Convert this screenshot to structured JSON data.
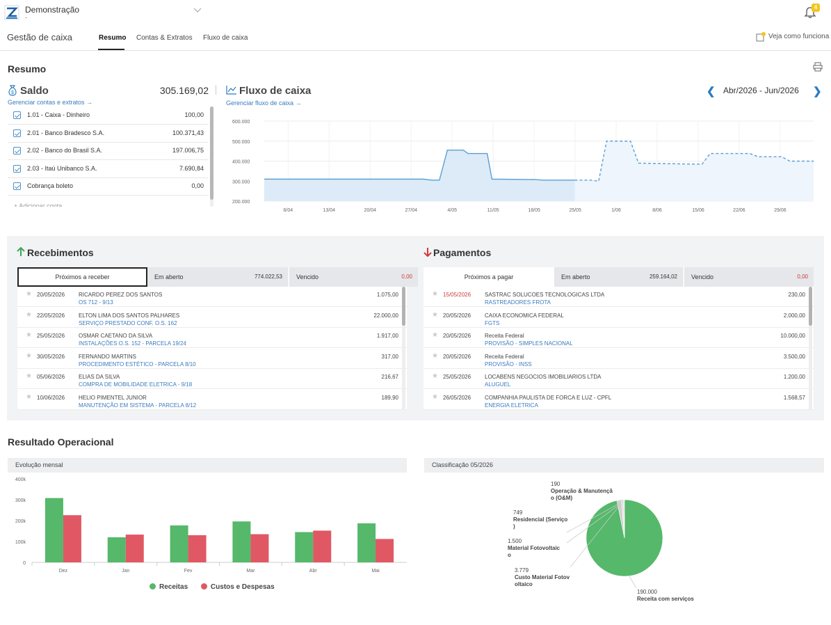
{
  "header": {
    "company": "Demonstração",
    "company_sub": "-",
    "notifications": "4"
  },
  "nav": {
    "title": "Gestão de caixa",
    "tabs": [
      "Resumo",
      "Contas & Extratos",
      "Fluxo de caixa"
    ],
    "help": "Veja como funciona"
  },
  "resumo": {
    "title": "Resumo",
    "saldo": {
      "title": "Saldo",
      "total": "305.169,02",
      "link": "Gerenciar contas e extratos →",
      "accounts": [
        {
          "name": "1.01 - Caixa - Dinheiro",
          "value": "100,00"
        },
        {
          "name": "2.01 - Banco Bradesco S.A.",
          "value": "100.371,43"
        },
        {
          "name": "2.02 - Banco do Brasil S.A.",
          "value": "197.006,75"
        },
        {
          "name": "2.03 - Itaú Unibanco S.A.",
          "value": "7.690,84"
        },
        {
          "name": "Cobrança boleto",
          "value": "0,00"
        }
      ],
      "more": "+ Adicionar conta"
    },
    "fluxo": {
      "title": "Fluxo de caixa",
      "link": "Gerenciar fluxo de caixa →",
      "period": "Abr/2026 - Jun/2026"
    }
  },
  "chart_data": [
    {
      "type": "area",
      "title": "Fluxo de caixa",
      "y_ticks": [
        "600.000",
        "500.000",
        "400.000",
        "300.000",
        "200.000"
      ],
      "ylim": [
        200000,
        600000
      ],
      "x_ticks": [
        "6/04",
        "13/04",
        "20/04",
        "27/04",
        "4/05",
        "11/05",
        "18/05",
        "25/05",
        "1/06",
        "8/06",
        "15/06",
        "22/06",
        "29/06"
      ],
      "series": [
        {
          "style": "solid",
          "points": [
            [
              0,
              310000
            ],
            [
              20,
              310000
            ],
            [
              21,
              305000
            ],
            [
              22,
              305000
            ],
            [
              23,
              455000
            ],
            [
              25,
              455000
            ],
            [
              25.6,
              438000
            ],
            [
              28,
              438000
            ],
            [
              28.6,
              310000
            ],
            [
              34,
              308000
            ],
            [
              35,
              305000
            ],
            [
              39,
              305000
            ]
          ]
        },
        {
          "style": "dashed",
          "points": [
            [
              39,
              305000
            ],
            [
              41,
              305000
            ],
            [
              42,
              300000
            ],
            [
              43,
              500000
            ],
            [
              46,
              500000
            ],
            [
              47,
              390000
            ],
            [
              54,
              385000
            ],
            [
              55,
              385000
            ],
            [
              56,
              438000
            ],
            [
              61,
              438000
            ],
            [
              62,
              422000
            ],
            [
              65,
              422000
            ],
            [
              66,
              400000
            ],
            [
              69,
              400000
            ]
          ]
        }
      ],
      "colors": {
        "line": "#5a9fd4",
        "fill": "#dcebf7"
      }
    },
    {
      "type": "bar",
      "title": "Evolução mensal",
      "categories": [
        "Dez",
        "Jan",
        "Fev",
        "Mar",
        "Abr",
        "Mai"
      ],
      "y_ticks": [
        "400k",
        "300k",
        "200k",
        "100k",
        "0"
      ],
      "ylim": [
        0,
        400000
      ],
      "series": [
        {
          "name": "Receitas",
          "color": "#55b86a",
          "values": [
            308000,
            120000,
            177000,
            196000,
            145000,
            187000
          ]
        },
        {
          "name": "Custos e Despesas",
          "color": "#e05864",
          "values": [
            226000,
            133000,
            130000,
            135000,
            152000,
            112000
          ]
        }
      ]
    },
    {
      "type": "pie",
      "title": "Classificação 05/2026",
      "slices": [
        {
          "label": "Receita com serviços",
          "value": 190000,
          "display": "190.000",
          "color": "#55b86a"
        },
        {
          "label": "Custo Material Fotovoltaico",
          "value": 3779,
          "display": "3.779",
          "color": "#cfcfcf"
        },
        {
          "label": "Material Fotovoltaico",
          "value": 1500,
          "display": "1.500",
          "color": "#d9d9d9"
        },
        {
          "label": "Residencial (Serviço)",
          "value": 749,
          "display": "749",
          "color": "#c4c4c4"
        },
        {
          "label": "Operação & Manutenção (O&M)",
          "value": 190,
          "display": "190",
          "color": "#bdbdbd"
        }
      ]
    }
  ],
  "recebimentos": {
    "title": "Recebimentos",
    "tabs": {
      "proximos": "Próximos a receber",
      "aberto": "Em aberto",
      "aberto_amt": "774.022,53",
      "vencido": "Vencido",
      "vencido_amt": "0,00"
    },
    "items": [
      {
        "date": "20/05/2026",
        "name": "RICARDO PEREZ DOS SANTOS",
        "desc": "OS 712 - 9/13",
        "amount": "1.075,00"
      },
      {
        "date": "22/05/2026",
        "name": "ELTON LIMA DOS SANTOS PALHARES",
        "desc": "SERVIÇO PRESTADO CONF. O.S. 162",
        "amount": "22.000,00"
      },
      {
        "date": "25/05/2026",
        "name": "OSMAR CAETANO DA SILVA",
        "desc": "INSTALAÇÕES O.S. 152 - PARCELA 19/24",
        "amount": "1.917,00"
      },
      {
        "date": "30/05/2026",
        "name": "FERNANDO MARTINS",
        "desc": "PROCEDIMENTO ESTÉTICO - PARCELA 8/10",
        "amount": "317,00"
      },
      {
        "date": "05/06/2026",
        "name": "ELIAS DA SILVA",
        "desc": "COMPRA DE MOBILIDADE ELETRICA - 9/18",
        "amount": "216,67"
      },
      {
        "date": "10/06/2026",
        "name": "HELIO PIMENTEL JUNIOR",
        "desc": "MANUTENÇÃO EM SISTEMA - PARCELA 8/12",
        "amount": "189,90"
      }
    ]
  },
  "pagamentos": {
    "title": "Pagamentos",
    "tabs": {
      "proximos": "Próximos a pagar",
      "aberto": "Em aberto",
      "aberto_amt": "259.164,02",
      "vencido": "Vencido",
      "vencido_amt": "0,00"
    },
    "items": [
      {
        "date": "15/05/2026",
        "late": true,
        "name": "SASTRAC SOLUCOES TECNOLOGICAS LTDA",
        "desc": "RASTREADORES FROTA",
        "amount": "230,00"
      },
      {
        "date": "20/05/2026",
        "name": "CAIXA ECONOMICA FEDERAL",
        "desc": "FGTS",
        "amount": "2.000,00"
      },
      {
        "date": "20/05/2026",
        "name": "Receita Federal",
        "desc": "PROVISÃO - SIMPLES NACIONAL",
        "amount": "10.000,00"
      },
      {
        "date": "20/05/2026",
        "name": "Receita Federal",
        "desc": "PROVISÃO - INSS",
        "amount": "3.500,00"
      },
      {
        "date": "25/05/2026",
        "name": "LOCABENS NEGOCIOS IMOBILIARIOS LTDA",
        "desc": "ALUGUEL",
        "amount": "1.200,00"
      },
      {
        "date": "26/05/2026",
        "name": "COMPANHIA PAULISTA DE FORCA E LUZ - CPFL",
        "desc": "ENERGIA ELETRICA",
        "amount": "1.568,57"
      }
    ]
  },
  "resultado": {
    "title": "Resultado Operacional",
    "evolucao": "Evolução mensal",
    "classificacao": "Classificação 05/2026",
    "legend": [
      "Receitas",
      "Custos e Despesas"
    ],
    "pie_labels": [
      {
        "value": "190",
        "lines": [
          "Operação & Manutençã",
          "o (O&M)"
        ]
      },
      {
        "value": "749",
        "lines": [
          "Residencial (Serviço",
          ")"
        ]
      },
      {
        "value": "1.500",
        "lines": [
          "Material Fotovoltaic",
          "o"
        ]
      },
      {
        "value": "3.779",
        "lines": [
          "Custo Material Fotov",
          "oltaico"
        ]
      },
      {
        "value": "190.000",
        "lines": [
          "Receita com serviços"
        ]
      }
    ]
  }
}
